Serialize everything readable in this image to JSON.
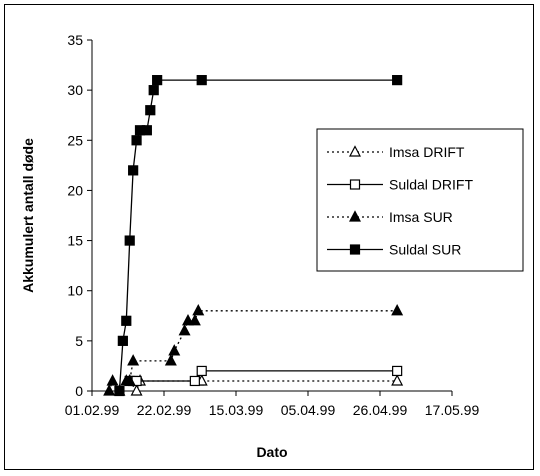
{
  "chart_data": {
    "type": "line",
    "title": "",
    "xlabel": "Dato",
    "ylabel": "Akkumulert antall døde",
    "ylim": [
      0,
      35
    ],
    "yticks": [
      "0",
      "5",
      "10",
      "15",
      "20",
      "25",
      "30",
      "35"
    ],
    "xlim": [
      "1999-02-01",
      "1999-05-17"
    ],
    "xticks": [
      "01.02.99",
      "22.02.99",
      "15.03.99",
      "05.04.99",
      "26.04.99",
      "17.05.99"
    ],
    "grid": false,
    "legend": "right",
    "series": [
      {
        "name": "Imsa DRIFT",
        "line": "dotted",
        "marker": "open-triangle",
        "color": "#000000",
        "points": [
          [
            "1999-02-12",
            1
          ],
          [
            "1999-02-14",
            0
          ],
          [
            "1999-02-15",
            1
          ],
          [
            "1999-03-04",
            1
          ],
          [
            "1999-03-05",
            1
          ],
          [
            "1999-05-01",
            1
          ]
        ]
      },
      {
        "name": "Suldal DRIFT",
        "line": "solid",
        "marker": "open-square",
        "color": "#000000",
        "points": [
          [
            "1999-02-12",
            1
          ],
          [
            "1999-02-13",
            1
          ],
          [
            "1999-02-14",
            1
          ],
          [
            "1999-03-03",
            1
          ],
          [
            "1999-03-05",
            2
          ],
          [
            "1999-05-01",
            2
          ]
        ]
      },
      {
        "name": "Imsa SUR",
        "line": "dotted",
        "marker": "filled-triangle",
        "color": "#000000",
        "points": [
          [
            "1999-02-06",
            0
          ],
          [
            "1999-02-07",
            1
          ],
          [
            "1999-02-09",
            0
          ],
          [
            "1999-02-11",
            1
          ],
          [
            "1999-02-12",
            1
          ],
          [
            "1999-02-13",
            3
          ],
          [
            "1999-02-24",
            3
          ],
          [
            "1999-02-25",
            4
          ],
          [
            "1999-02-28",
            6
          ],
          [
            "1999-03-01",
            7
          ],
          [
            "1999-03-03",
            7
          ],
          [
            "1999-03-04",
            8
          ],
          [
            "1999-05-01",
            8
          ]
        ]
      },
      {
        "name": "Suldal SUR",
        "line": "solid",
        "marker": "filled-square",
        "color": "#000000",
        "points": [
          [
            "1999-02-09",
            0
          ],
          [
            "1999-02-10",
            5
          ],
          [
            "1999-02-11",
            7
          ],
          [
            "1999-02-12",
            15
          ],
          [
            "1999-02-13",
            22
          ],
          [
            "1999-02-14",
            25
          ],
          [
            "1999-02-15",
            26
          ],
          [
            "1999-02-17",
            26
          ],
          [
            "1999-02-18",
            28
          ],
          [
            "1999-02-19",
            30
          ],
          [
            "1999-02-20",
            31
          ],
          [
            "1999-03-05",
            31
          ],
          [
            "1999-05-01",
            31
          ]
        ]
      }
    ]
  }
}
